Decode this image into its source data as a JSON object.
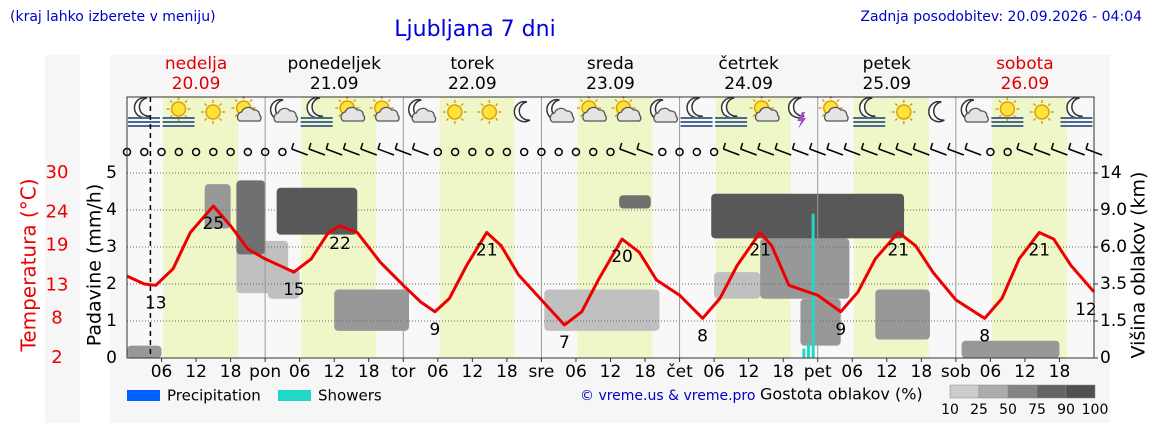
{
  "header": {
    "left": "(kraj lahko izberete v meniju)",
    "title": "Ljubljana 7 dni",
    "updated": "Zadnja posodobitev: 20.09.2026 - 04:04"
  },
  "chart_data": {
    "type": "meteogram",
    "days": [
      {
        "name": "nedelja",
        "date": "20.09",
        "color": "#e00000"
      },
      {
        "name": "ponedeljek",
        "date": "21.09",
        "color": "#000000"
      },
      {
        "name": "torek",
        "date": "22.09",
        "color": "#000000"
      },
      {
        "name": "sreda",
        "date": "23.09",
        "color": "#000000"
      },
      {
        "name": "četrtek",
        "date": "24.09",
        "color": "#000000"
      },
      {
        "name": "petek",
        "date": "25.09",
        "color": "#000000"
      },
      {
        "name": "sobota",
        "date": "26.09",
        "color": "#e00000"
      }
    ],
    "xlim": [
      0,
      168
    ],
    "xticks": [
      {
        "value": 6,
        "label": "06"
      },
      12,
      18,
      {
        "value": 24,
        "label": "pon"
      },
      {
        "value": 30,
        "label": "06"
      },
      {
        "value": 36,
        "label": "12"
      },
      {
        "value": 42,
        "label": "18"
      },
      {
        "value": 48,
        "label": "tor"
      },
      {
        "value": 54,
        "label": "06"
      },
      {
        "value": 60,
        "label": "12"
      },
      {
        "value": 66,
        "label": "18"
      },
      {
        "value": 72,
        "label": "sre"
      },
      {
        "value": 78,
        "label": "06"
      },
      {
        "value": 84,
        "label": "12"
      },
      {
        "value": 90,
        "label": "18"
      },
      {
        "value": 96,
        "label": "čet"
      },
      {
        "value": 102,
        "label": "06"
      },
      {
        "value": 108,
        "label": "12"
      },
      {
        "value": 114,
        "label": "18"
      },
      {
        "value": 120,
        "label": "pet"
      },
      {
        "value": 126,
        "label": "06"
      },
      {
        "value": 132,
        "label": "12"
      },
      {
        "value": 138,
        "label": "18"
      },
      {
        "value": 144,
        "label": "sob"
      },
      {
        "value": 150,
        "label": "06"
      },
      {
        "value": 156,
        "label": "12"
      },
      {
        "value": 162,
        "label": "18"
      }
    ],
    "y_label": "Padavine (mm/h)",
    "ylim": [
      0,
      5
    ],
    "yticks": [
      0,
      1,
      2,
      3,
      4,
      5
    ],
    "y2_label": "Višina oblakov (km)",
    "y2lim": [
      0,
      14
    ],
    "y2ticks": [
      0,
      1.5,
      3.5,
      {
        "value": 6,
        "label": "6.0"
      },
      {
        "value": 9,
        "label": "9.0"
      },
      14
    ],
    "temperature": {
      "name": "Temperatura (°C)",
      "color": "#ee0000",
      "ylim": [
        2,
        30
      ],
      "yticks": [
        2,
        8,
        13,
        19,
        24,
        30
      ],
      "x": [
        0,
        3,
        5,
        8,
        11,
        15,
        18,
        21,
        24,
        27,
        29,
        32,
        35,
        37,
        40,
        44,
        48,
        51,
        53.5,
        56,
        59,
        62.5,
        65,
        68,
        72,
        76,
        79,
        82,
        86,
        89,
        92,
        96,
        100,
        103,
        106,
        110,
        112,
        115,
        120,
        124,
        127,
        130,
        134,
        137,
        140,
        144,
        149,
        152,
        155,
        158.5,
        161,
        164,
        168
      ],
      "values": [
        14.4,
        13.2,
        13,
        15.5,
        21,
        25,
        22,
        18.5,
        17,
        15.8,
        15,
        17,
        21,
        22,
        21,
        16.5,
        13,
        10.5,
        9,
        11,
        16,
        21,
        19,
        14.6,
        10.8,
        7,
        9,
        14,
        20,
        18,
        13.8,
        11.5,
        8,
        11,
        16,
        21,
        19,
        13,
        11.5,
        9,
        12,
        17,
        21,
        19,
        15,
        10.8,
        8,
        11,
        17,
        21,
        20,
        16,
        12
      ]
    },
    "series": [
      {
        "name": "Precipitation",
        "color": "#0060ff",
        "x": [],
        "values": []
      },
      {
        "name": "Showers",
        "color": "#20d8c8",
        "x": [
          117.6,
          118.4,
          119.2
        ],
        "values": [
          0.25,
          0.4,
          3.9
        ]
      }
    ],
    "clouds": {
      "title": "Gostota oblakov (%)",
      "ticks": [
        10,
        25,
        50,
        75,
        90,
        100
      ],
      "blocks": [
        {
          "x": [
            0,
            6
          ],
          "km": [
            0,
            0.5
          ],
          "density": 50
        },
        {
          "x": [
            19,
            28
          ],
          "km": [
            3,
            6.5
          ],
          "density": 25
        },
        {
          "x": [
            24.5,
            30
          ],
          "km": [
            2.7,
            4.5
          ],
          "density": 25
        },
        {
          "x": [
            13.5,
            18
          ],
          "km": [
            7.5,
            12.5
          ],
          "density": 50
        },
        {
          "x": [
            19,
            24
          ],
          "km": [
            5.5,
            13
          ],
          "density": 75
        },
        {
          "x": [
            26,
            40
          ],
          "km": [
            7,
            12
          ],
          "density": 90
        },
        {
          "x": [
            36,
            49
          ],
          "km": [
            1.1,
            3.2
          ],
          "density": 50
        },
        {
          "x": [
            72.5,
            92.5
          ],
          "km": [
            1.1,
            3.2
          ],
          "density": 25
        },
        {
          "x": [
            85.5,
            91
          ],
          "km": [
            9.2,
            11
          ],
          "density": 75
        },
        {
          "x": [
            102,
            110
          ],
          "km": [
            2.7,
            4.3
          ],
          "density": 25
        },
        {
          "x": [
            110,
            125.5
          ],
          "km": [
            2.7,
            6.7
          ],
          "density": 50
        },
        {
          "x": [
            101.5,
            135
          ],
          "km": [
            6.7,
            11.2
          ],
          "density": 90
        },
        {
          "x": [
            117,
            124
          ],
          "km": [
            0.5,
            2.7
          ],
          "density": 50
        },
        {
          "x": [
            130,
            139.5
          ],
          "km": [
            0.75,
            3.2
          ],
          "density": 50
        },
        {
          "x": [
            145,
            162
          ],
          "km": [
            0,
            0.7
          ],
          "density": 50
        }
      ]
    },
    "credit": "© vreme.us & vreme.pro"
  }
}
